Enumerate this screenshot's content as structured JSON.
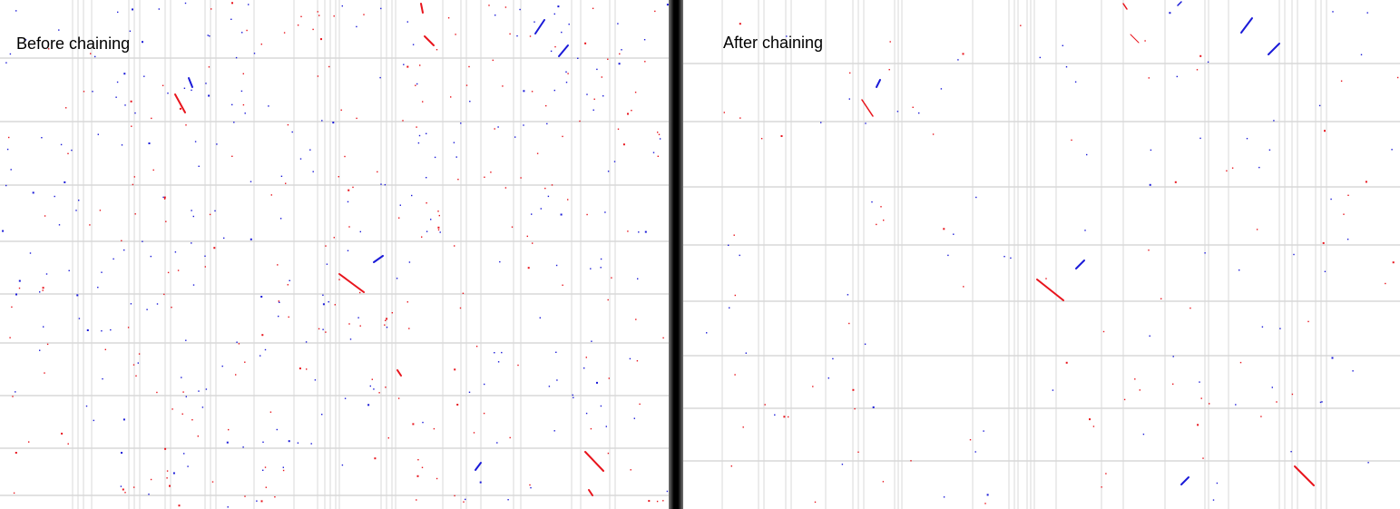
{
  "panels": [
    {
      "id": "before",
      "label": "Before chaining",
      "seed": 12345,
      "dot_density": "high"
    },
    {
      "id": "after",
      "label": "After chaining",
      "seed": 67890,
      "dot_density": "low"
    }
  ],
  "colors": {
    "forward_strand": "#e8141c",
    "reverse_strand": "#1a1ad8",
    "grid_line": "#d8d8d8",
    "divider": "#000000",
    "background": "#ffffff"
  }
}
